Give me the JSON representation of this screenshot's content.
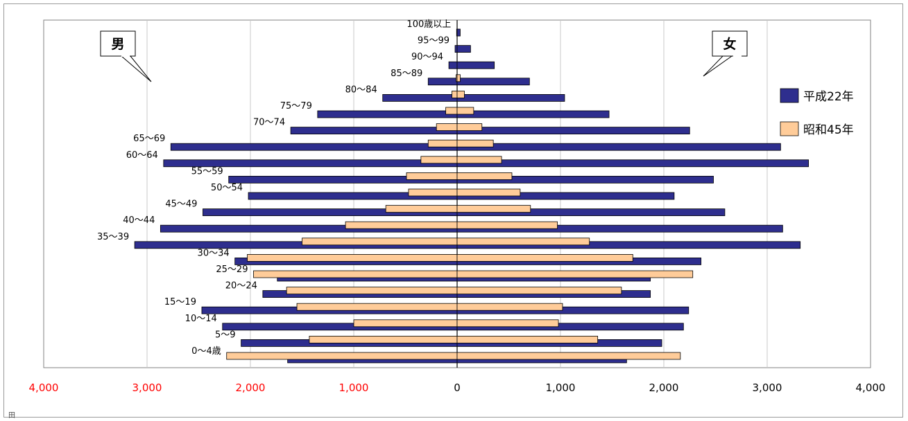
{
  "chart_data": {
    "type": "bar",
    "orientation": "horizontal",
    "layout": "population-pyramid",
    "left_label": "男",
    "right_label": "女",
    "categories": [
      "0～4歳",
      "5～9",
      "10～14",
      "15～19",
      "20～24",
      "25～29",
      "30～34",
      "35～39",
      "40～44",
      "45～49",
      "50～54",
      "55～59",
      "60～64",
      "65～69",
      "70～74",
      "75～79",
      "80～84",
      "85～89",
      "90～94",
      "95～99",
      "100歳以上"
    ],
    "series": [
      {
        "name": "平成22年",
        "color": "#2e2e8e",
        "male": [
          1640,
          2090,
          2270,
          2470,
          1880,
          1740,
          2150,
          3120,
          2870,
          2460,
          2020,
          2210,
          2840,
          2770,
          1610,
          1350,
          720,
          280,
          80,
          20,
          5
        ],
        "female": [
          1640,
          1980,
          2190,
          2240,
          1870,
          1870,
          2360,
          3320,
          3150,
          2590,
          2100,
          2480,
          3400,
          3130,
          2250,
          1470,
          1040,
          700,
          360,
          130,
          30
        ]
      },
      {
        "name": "昭和45年",
        "color": "#ffcc99",
        "male": [
          2230,
          1430,
          1000,
          1550,
          1650,
          1970,
          2030,
          1500,
          1080,
          690,
          470,
          490,
          350,
          280,
          200,
          110,
          50,
          10,
          0,
          0,
          0
        ],
        "female": [
          2160,
          1360,
          980,
          1020,
          1590,
          2280,
          1700,
          1280,
          970,
          710,
          610,
          530,
          430,
          350,
          240,
          160,
          70,
          30,
          0,
          0,
          0
        ]
      }
    ],
    "x_ticks_left": [
      "4,000",
      "3,000",
      "2,000",
      "1,000"
    ],
    "x_ticks_right": [
      "0",
      "1,000",
      "2,000",
      "3,000",
      "4,000"
    ],
    "x_tick_values": [
      -4000,
      -3000,
      -2000,
      -1000,
      0,
      1000,
      2000,
      3000,
      4000
    ],
    "xlim": [
      -4000,
      4000
    ],
    "grid": true,
    "legend_position": "right",
    "left_tick_color": "#ff0000",
    "right_tick_color": "#000000"
  },
  "footer_mark": "田"
}
